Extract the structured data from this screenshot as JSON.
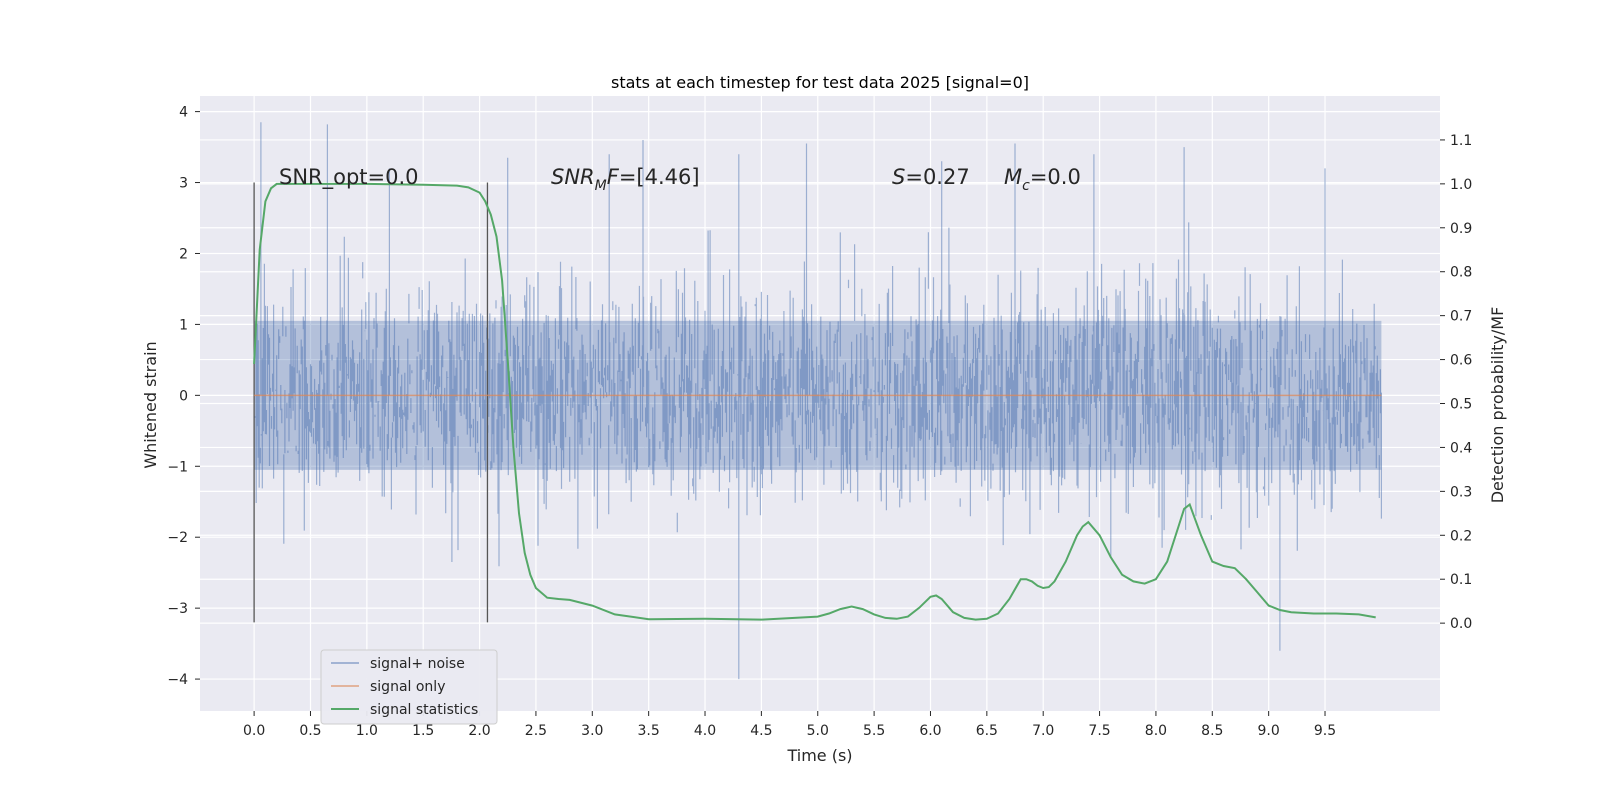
{
  "chart_data": {
    "type": "line",
    "title": "stats at each timestep for test data 2025 [signal=0]",
    "xlabel": "Time (s)",
    "ylabel_left": "Whitened strain",
    "ylabel_right": "Detection probability/MF",
    "xlim": [
      -0.48,
      10.52
    ],
    "ylim_left": [
      -4.45,
      4.22
    ],
    "ylim_right": [
      -0.2,
      1.2
    ],
    "x_ticks": [
      "0.0",
      "0.5",
      "1.0",
      "1.5",
      "2.0",
      "2.5",
      "3.0",
      "3.5",
      "4.0",
      "4.5",
      "5.0",
      "5.5",
      "6.0",
      "6.5",
      "7.0",
      "7.5",
      "8.0",
      "8.5",
      "9.0",
      "9.5"
    ],
    "y_ticks_left": [
      4,
      3,
      2,
      1,
      0,
      -1,
      -2,
      -3,
      -4
    ],
    "y_ticks_right": [
      "1.1",
      "1.0",
      "0.9",
      "0.8",
      "0.7",
      "0.6",
      "0.5",
      "0.4",
      "0.3",
      "0.2",
      "0.1",
      "0.0"
    ],
    "grid": true,
    "legend_position": "lower-left",
    "annotations": {
      "snr_opt": "SNR_opt=0.0",
      "snr_mf_main": "SNR",
      "snr_mf_sub": "M",
      "snr_mf_rest": "F=[4.46]",
      "s_label": "S",
      "s_value": "=0.27",
      "mc_main": "M",
      "mc_sub": "c",
      "mc_value": "=0.0"
    },
    "window_markers_s": [
      0.0,
      2.07
    ],
    "series": [
      {
        "name": "signal+ noise",
        "color": "#4c72b0",
        "alpha": 0.5,
        "description_range": [
          -4.0,
          3.85
        ],
        "peaks": [
          [
            0.06,
            3.85
          ],
          [
            0.65,
            3.82
          ],
          [
            1.2,
            3.2
          ],
          [
            2.25,
            3.35
          ],
          [
            3.15,
            3.4
          ],
          [
            3.45,
            3.6
          ],
          [
            4.3,
            -4.0
          ],
          [
            4.3,
            3.4
          ],
          [
            4.9,
            3.55
          ],
          [
            6.1,
            3.3
          ],
          [
            6.75,
            3.55
          ],
          [
            7.45,
            3.4
          ],
          [
            8.25,
            3.5
          ],
          [
            9.1,
            -3.6
          ],
          [
            9.5,
            3.2
          ]
        ]
      },
      {
        "name": "signal only",
        "color": "#dd8452",
        "constant": 0.0
      },
      {
        "name": "signal statistics",
        "color": "#55a868",
        "axis": "right",
        "x": [
          0.0,
          0.05,
          0.1,
          0.15,
          0.2,
          0.3,
          0.5,
          1.0,
          1.5,
          1.8,
          1.9,
          2.0,
          2.05,
          2.1,
          2.15,
          2.2,
          2.25,
          2.3,
          2.35,
          2.4,
          2.45,
          2.5,
          2.6,
          2.7,
          2.8,
          3.0,
          3.2,
          3.5,
          4.0,
          4.5,
          5.0,
          5.1,
          5.2,
          5.3,
          5.4,
          5.5,
          5.6,
          5.7,
          5.8,
          5.9,
          6.0,
          6.05,
          6.1,
          6.2,
          6.3,
          6.4,
          6.5,
          6.6,
          6.7,
          6.8,
          6.85,
          6.9,
          6.95,
          7.0,
          7.05,
          7.1,
          7.2,
          7.3,
          7.35,
          7.4,
          7.5,
          7.6,
          7.7,
          7.8,
          7.9,
          8.0,
          8.1,
          8.2,
          8.25,
          8.3,
          8.4,
          8.5,
          8.6,
          8.7,
          8.8,
          8.9,
          9.0,
          9.1,
          9.2,
          9.4,
          9.6,
          9.8,
          9.95
        ],
        "y": [
          0.59,
          0.85,
          0.96,
          0.99,
          1.0,
          1.0,
          1.0,
          1.0,
          0.998,
          0.996,
          0.992,
          0.98,
          0.96,
          0.93,
          0.88,
          0.78,
          0.6,
          0.4,
          0.25,
          0.16,
          0.11,
          0.08,
          0.058,
          0.055,
          0.053,
          0.04,
          0.02,
          0.009,
          0.01,
          0.008,
          0.015,
          0.022,
          0.032,
          0.038,
          0.032,
          0.02,
          0.012,
          0.01,
          0.015,
          0.035,
          0.06,
          0.063,
          0.055,
          0.025,
          0.012,
          0.008,
          0.01,
          0.022,
          0.055,
          0.1,
          0.1,
          0.095,
          0.085,
          0.08,
          0.082,
          0.095,
          0.14,
          0.2,
          0.22,
          0.23,
          0.2,
          0.15,
          0.11,
          0.095,
          0.09,
          0.1,
          0.14,
          0.22,
          0.26,
          0.27,
          0.2,
          0.14,
          0.13,
          0.125,
          0.1,
          0.07,
          0.04,
          0.03,
          0.025,
          0.022,
          0.022,
          0.02,
          0.013
        ]
      }
    ]
  }
}
